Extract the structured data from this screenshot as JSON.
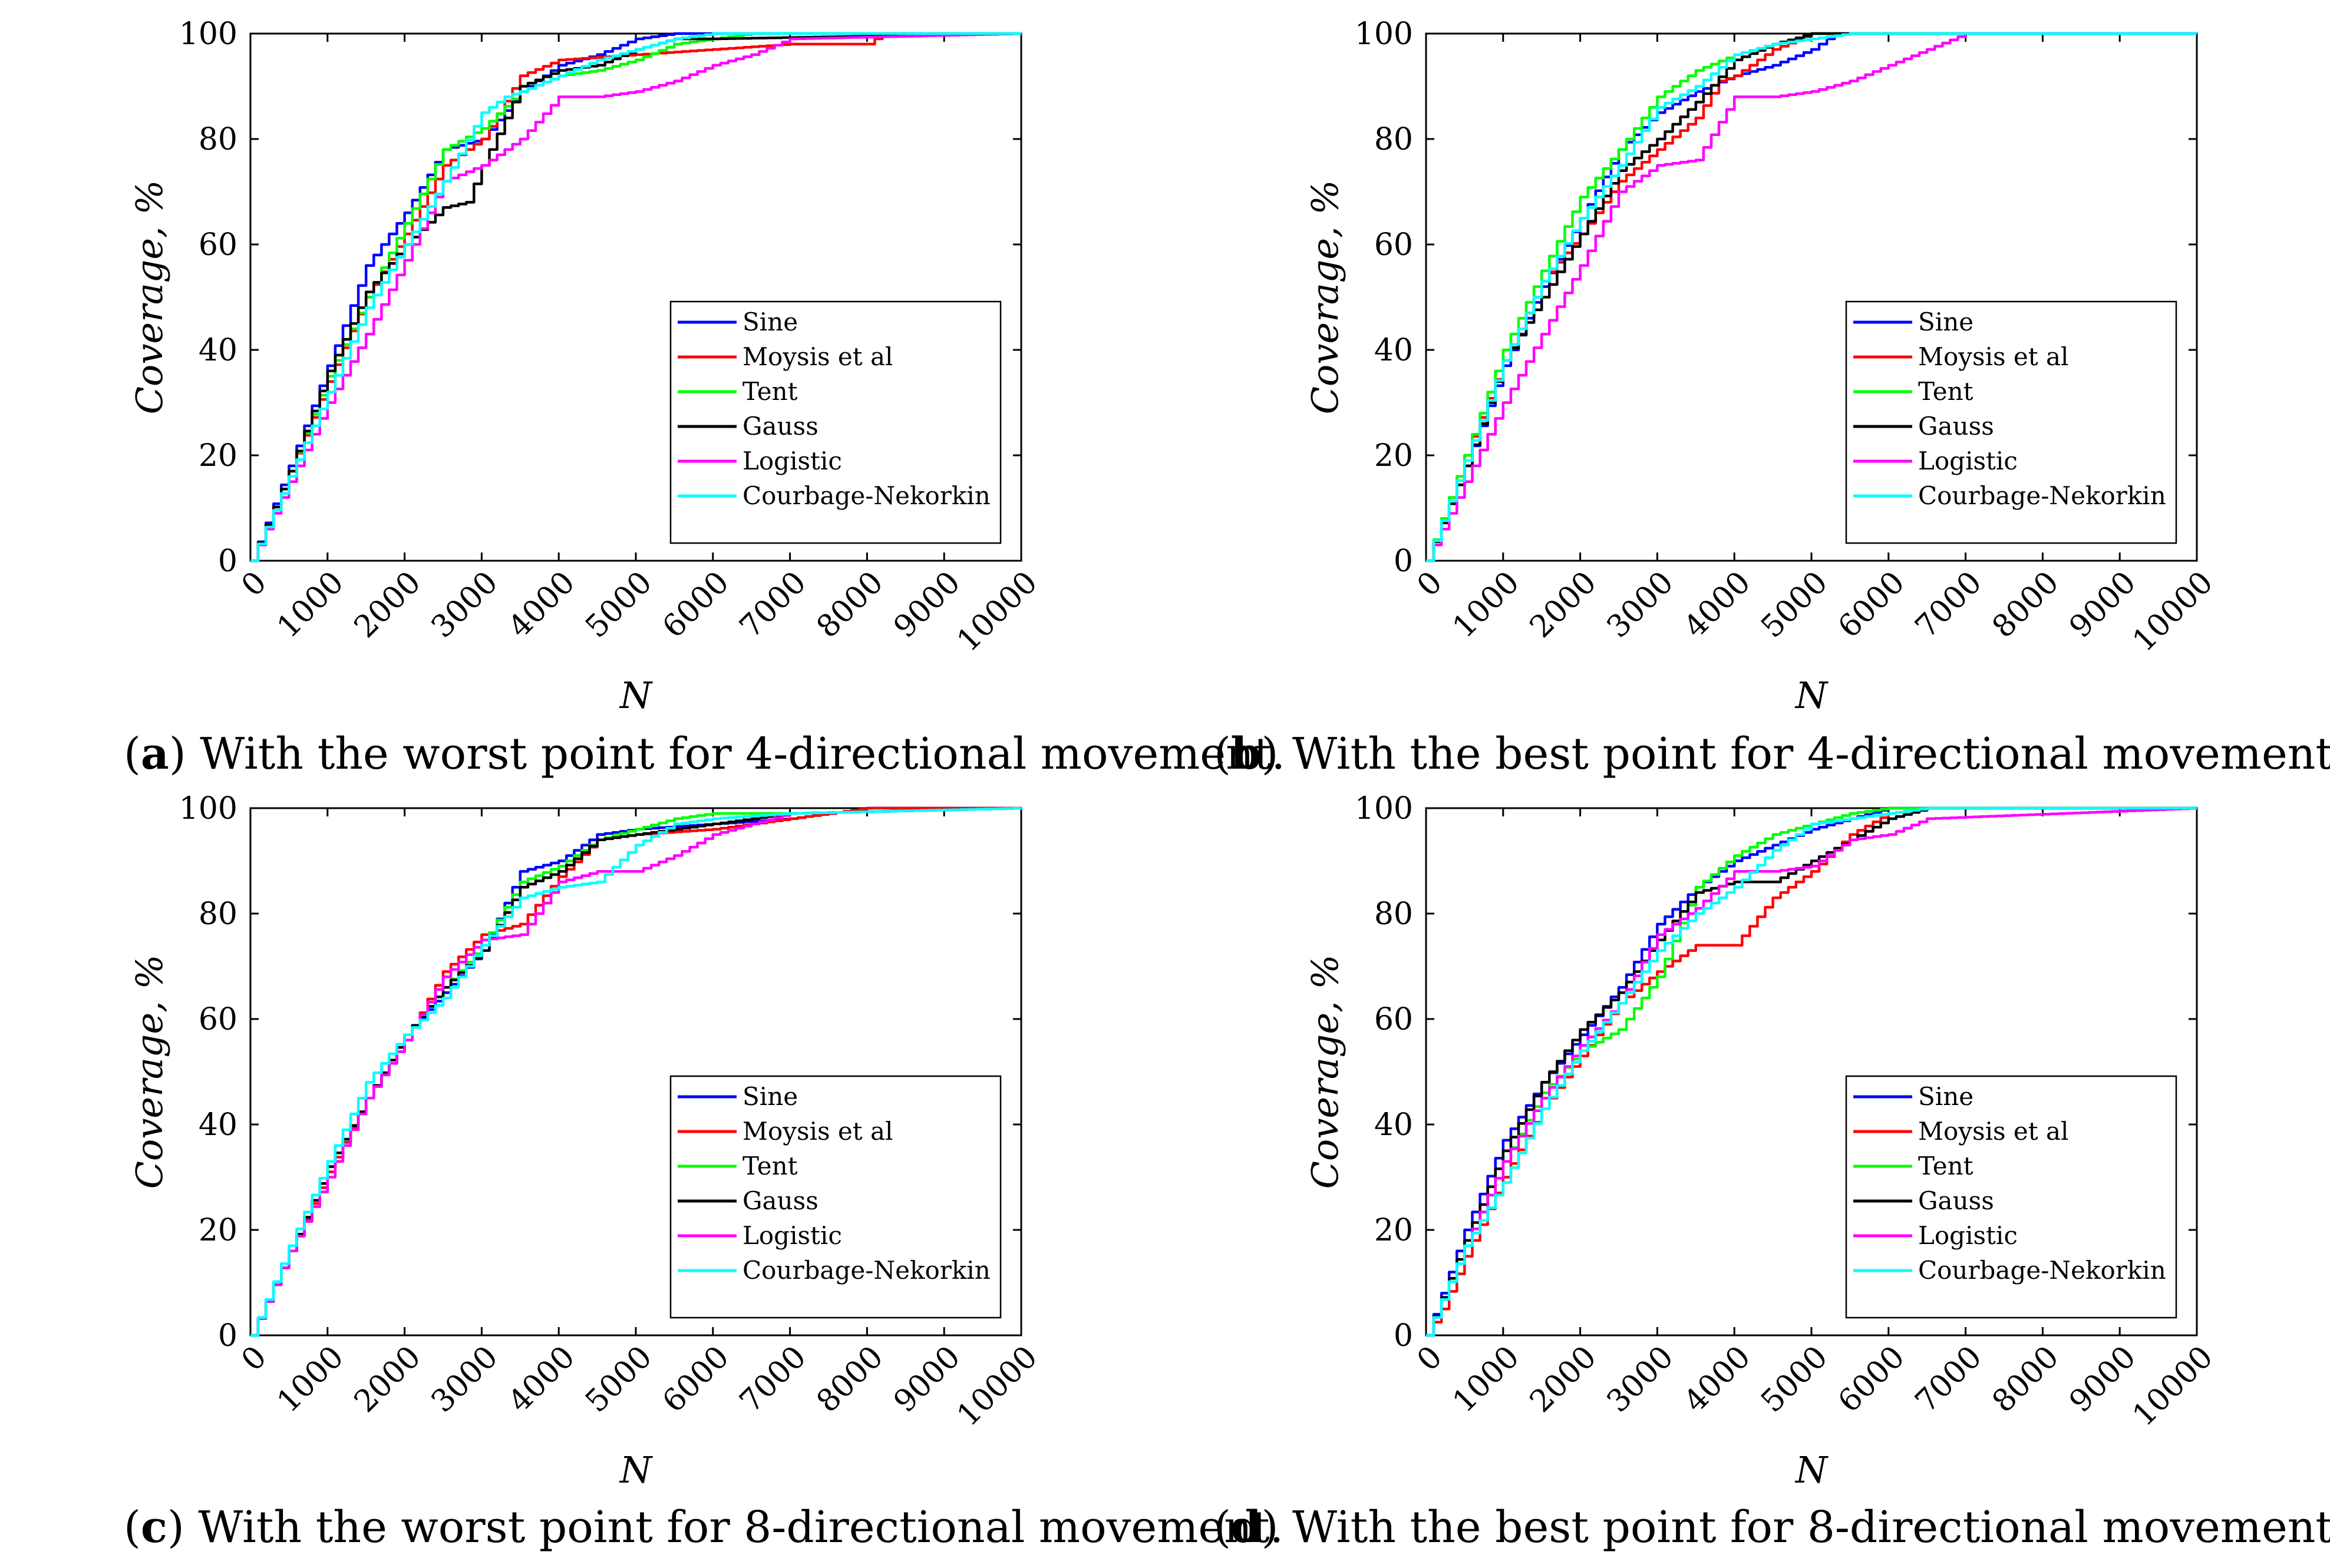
{
  "figure": {
    "series_meta": [
      {
        "name": "Sine",
        "color": "#0000ff"
      },
      {
        "name": "Moysis et al",
        "color": "#ff0000"
      },
      {
        "name": "Tent",
        "color": "#00ff00"
      },
      {
        "name": "Gauss",
        "color": "#000000"
      },
      {
        "name": "Logistic",
        "color": "#ff00ff"
      },
      {
        "name": "Courbage-Nekorkin",
        "color": "#00ffff"
      }
    ]
  },
  "chart_data": [
    {
      "type": "line",
      "panel": "a",
      "caption_letter": "a",
      "caption_text": "With the worst point for 4-directional movement.",
      "xlabel": "N",
      "ylabel": "Coverage, %",
      "xlim": [
        0,
        10000
      ],
      "ylim": [
        0,
        100
      ],
      "xticks": [
        "0",
        "1000",
        "2000",
        "3000",
        "4000",
        "5000",
        "6000",
        "7000",
        "8000",
        "9000",
        "10000"
      ],
      "yticks": [
        "0",
        "20",
        "40",
        "60",
        "80",
        "100"
      ],
      "legend": [
        "Sine",
        "Moysis et al",
        "Tent",
        "Gauss",
        "Logistic",
        "Courbage-Nekorkin"
      ],
      "legend_position": "bottom-right",
      "series": [
        {
          "name": "Sine",
          "x": [
            0,
            500,
            1000,
            1500,
            2000,
            2500,
            3000,
            3500,
            4000,
            4500,
            5000,
            5500,
            6000,
            10000
          ],
          "y": [
            0,
            18,
            37,
            56,
            66,
            78,
            80,
            89,
            94,
            96,
            99,
            100,
            100,
            100
          ]
        },
        {
          "name": "Moysis et al",
          "x": [
            0,
            500,
            1000,
            1500,
            2000,
            2500,
            3000,
            3500,
            4000,
            5000,
            6000,
            7000,
            8000,
            8200,
            10000
          ],
          "y": [
            0,
            17,
            34,
            50,
            62,
            75,
            80,
            92,
            95,
            96,
            97,
            98,
            98,
            100,
            100
          ]
        },
        {
          "name": "Tent",
          "x": [
            0,
            500,
            1000,
            1500,
            2000,
            2500,
            3000,
            3500,
            4000,
            4500,
            5000,
            5500,
            6500,
            10000
          ],
          "y": [
            0,
            17,
            35,
            50,
            64,
            78,
            82,
            89,
            92,
            93,
            95,
            98,
            100,
            100
          ]
        },
        {
          "name": "Gauss",
          "x": [
            0,
            500,
            1000,
            1500,
            2000,
            2500,
            2800,
            3000,
            3500,
            4000,
            4500,
            5000,
            5500,
            6000,
            10000
          ],
          "y": [
            0,
            17,
            36,
            51,
            60,
            67,
            68,
            75,
            90,
            93,
            94,
            97,
            99,
            99,
            100
          ]
        },
        {
          "name": "Logistic",
          "x": [
            0,
            500,
            1000,
            1500,
            2000,
            2500,
            3000,
            3500,
            4000,
            4500,
            5000,
            5500,
            6000,
            6500,
            7000,
            10000
          ],
          "y": [
            0,
            15,
            30,
            43,
            57,
            72,
            75,
            80,
            88,
            88,
            89,
            91,
            94,
            96,
            99,
            100
          ]
        },
        {
          "name": "Courbage-Nekorkin",
          "x": [
            0,
            500,
            1000,
            1500,
            2000,
            2500,
            3000,
            3300,
            3500,
            4000,
            4500,
            5000,
            5500,
            6000,
            10000
          ],
          "y": [
            0,
            16,
            32,
            48,
            60,
            72,
            85,
            88,
            89,
            92,
            95,
            97,
            99,
            100,
            100
          ]
        }
      ]
    },
    {
      "type": "line",
      "panel": "b",
      "caption_letter": "b",
      "caption_text": "With the best point for 4-directional movement.",
      "xlabel": "N",
      "ylabel": "Coverage, %",
      "xlim": [
        0,
        10000
      ],
      "ylim": [
        0,
        100
      ],
      "xticks": [
        "0",
        "1000",
        "2000",
        "3000",
        "4000",
        "5000",
        "6000",
        "7000",
        "8000",
        "9000",
        "10000"
      ],
      "yticks": [
        "0",
        "20",
        "40",
        "60",
        "80",
        "100"
      ],
      "legend": [
        "Sine",
        "Moysis et al",
        "Tent",
        "Gauss",
        "Logistic",
        "Courbage-Nekorkin"
      ],
      "legend_position": "bottom-right",
      "series": [
        {
          "name": "Sine",
          "x": [
            0,
            500,
            1000,
            1500,
            2000,
            2500,
            3000,
            3500,
            4000,
            4500,
            5000,
            5300,
            10000
          ],
          "y": [
            0,
            18,
            37,
            52,
            65,
            78,
            85,
            89,
            92,
            94,
            97,
            100,
            100
          ]
        },
        {
          "name": "Moysis et al",
          "x": [
            0,
            500,
            1000,
            1500,
            2000,
            2500,
            3000,
            3500,
            3800,
            4000,
            4500,
            5000,
            10000
          ],
          "y": [
            0,
            20,
            38,
            53,
            62,
            72,
            78,
            84,
            91,
            92,
            97,
            100,
            100
          ]
        },
        {
          "name": "Tent",
          "x": [
            0,
            500,
            1000,
            1500,
            2000,
            2500,
            3000,
            3500,
            4000,
            4500,
            5000,
            10000
          ],
          "y": [
            0,
            20,
            40,
            55,
            69,
            78,
            88,
            93,
            96,
            98,
            100,
            100
          ]
        },
        {
          "name": "Gauss",
          "x": [
            0,
            500,
            1000,
            1500,
            2000,
            2500,
            3000,
            3500,
            4000,
            4500,
            5000,
            10000
          ],
          "y": [
            0,
            18,
            38,
            50,
            62,
            74,
            80,
            87,
            95,
            98,
            100,
            100
          ]
        },
        {
          "name": "Logistic",
          "x": [
            0,
            500,
            1000,
            1500,
            2000,
            2500,
            3000,
            3500,
            4000,
            4500,
            5000,
            5500,
            6000,
            6500,
            7000,
            10000
          ],
          "y": [
            0,
            15,
            30,
            43,
            56,
            70,
            75,
            76,
            88,
            88,
            89,
            91,
            94,
            97,
            100,
            100
          ]
        },
        {
          "name": "Courbage-Nekorkin",
          "x": [
            0,
            500,
            1000,
            1500,
            2000,
            2500,
            3000,
            3500,
            4000,
            4500,
            5000,
            5500,
            10000
          ],
          "y": [
            0,
            19,
            38,
            53,
            65,
            75,
            86,
            90,
            96,
            98,
            99,
            100,
            100
          ]
        }
      ]
    },
    {
      "type": "line",
      "panel": "c",
      "caption_letter": "c",
      "caption_text": "With the worst point for 8-directional movement.",
      "xlabel": "N",
      "ylabel": "Coverage, %",
      "xlim": [
        0,
        10000
      ],
      "ylim": [
        0,
        100
      ],
      "xticks": [
        "0",
        "1000",
        "2000",
        "3000",
        "4000",
        "5000",
        "6000",
        "7000",
        "8000",
        "9000",
        "10000"
      ],
      "yticks": [
        "0",
        "20",
        "40",
        "60",
        "80",
        "100"
      ],
      "legend": [
        "Sine",
        "Moysis et al",
        "Tent",
        "Gauss",
        "Logistic",
        "Courbage-Nekorkin"
      ],
      "legend_position": "bottom-right",
      "series": [
        {
          "name": "Sine",
          "x": [
            0,
            500,
            1000,
            1500,
            2000,
            2500,
            3000,
            3500,
            4000,
            4500,
            5000,
            6000,
            7000,
            8000,
            10000
          ],
          "y": [
            0,
            16,
            32,
            45,
            57,
            65,
            73,
            88,
            90,
            95,
            96,
            97,
            98,
            100,
            100
          ]
        },
        {
          "name": "Moysis et al",
          "x": [
            0,
            500,
            1000,
            1500,
            2000,
            2500,
            3000,
            3500,
            4000,
            4500,
            5000,
            6000,
            7000,
            8000,
            10000
          ],
          "y": [
            0,
            16,
            31,
            45,
            56,
            69,
            76,
            78,
            87,
            94,
            95,
            96,
            98,
            100,
            100
          ]
        },
        {
          "name": "Tent",
          "x": [
            0,
            500,
            1000,
            1500,
            2000,
            2500,
            3000,
            3500,
            4000,
            4500,
            5000,
            5500,
            6000,
            7000,
            10000
          ],
          "y": [
            0,
            16,
            32,
            45,
            57,
            66,
            74,
            86,
            89,
            94,
            96,
            98,
            99,
            99,
            100
          ]
        },
        {
          "name": "Gauss",
          "x": [
            0,
            500,
            1000,
            1500,
            2000,
            2500,
            3000,
            3500,
            4000,
            4500,
            5000,
            6000,
            7000,
            10000
          ],
          "y": [
            0,
            16,
            32,
            45,
            57,
            66,
            73,
            85,
            88,
            94,
            95,
            97,
            99,
            100
          ]
        },
        {
          "name": "Logistic",
          "x": [
            0,
            500,
            1000,
            1500,
            2000,
            2500,
            3000,
            3500,
            4000,
            4500,
            5000,
            5500,
            6000,
            6500,
            7000,
            10000
          ],
          "y": [
            0,
            16,
            30,
            45,
            56,
            68,
            75,
            76,
            86,
            88,
            88,
            91,
            95,
            97,
            99,
            100
          ]
        },
        {
          "name": "Courbage-Nekorkin",
          "x": [
            0,
            500,
            1000,
            1500,
            2000,
            2500,
            3000,
            3500,
            4000,
            4500,
            5000,
            5500,
            6000,
            7000,
            10000
          ],
          "y": [
            0,
            17,
            33,
            48,
            57,
            64,
            74,
            83,
            85,
            86,
            93,
            97,
            98,
            99,
            100
          ]
        }
      ]
    },
    {
      "type": "line",
      "panel": "d",
      "caption_letter": "d",
      "caption_text": "With the best point for 8-directional movement.",
      "xlabel": "N",
      "ylabel": "Coverage, %",
      "xlim": [
        0,
        10000
      ],
      "ylim": [
        0,
        100
      ],
      "xticks": [
        "0",
        "1000",
        "2000",
        "3000",
        "4000",
        "5000",
        "6000",
        "7000",
        "8000",
        "9000",
        "10000"
      ],
      "yticks": [
        "0",
        "20",
        "40",
        "60",
        "80",
        "100"
      ],
      "legend": [
        "Sine",
        "Moysis et al",
        "Tent",
        "Gauss",
        "Logistic",
        "Courbage-Nekorkin"
      ],
      "legend_position": "bottom-right",
      "series": [
        {
          "name": "Sine",
          "x": [
            0,
            500,
            1000,
            1500,
            2000,
            2500,
            3000,
            3500,
            4000,
            4500,
            5000,
            5500,
            6000,
            10000
          ],
          "y": [
            0,
            20,
            37,
            48,
            57,
            66,
            78,
            85,
            90,
            93,
            96,
            98,
            100,
            100
          ]
        },
        {
          "name": "Moysis et al",
          "x": [
            0,
            200,
            500,
            1000,
            1500,
            2000,
            2500,
            3000,
            3500,
            4000,
            4500,
            5000,
            5500,
            6000,
            6500,
            10000
          ],
          "y": [
            0,
            5,
            15,
            30,
            43,
            53,
            63,
            69,
            74,
            74,
            83,
            88,
            95,
            99,
            100,
            100
          ]
        },
        {
          "name": "Tent",
          "x": [
            0,
            500,
            1000,
            1500,
            2000,
            2500,
            3000,
            3500,
            4000,
            4500,
            5000,
            5500,
            6000,
            10000
          ],
          "y": [
            0,
            17,
            33,
            46,
            54,
            58,
            68,
            85,
            91,
            95,
            97,
            99,
            100,
            100
          ]
        },
        {
          "name": "Gauss",
          "x": [
            0,
            500,
            1000,
            1500,
            2000,
            2500,
            3000,
            3500,
            4000,
            4500,
            5000,
            5500,
            6000,
            6500,
            10000
          ],
          "y": [
            0,
            18,
            35,
            48,
            58,
            65,
            75,
            84,
            86,
            86,
            90,
            94,
            98,
            100,
            100
          ]
        },
        {
          "name": "Logistic",
          "x": [
            0,
            500,
            1000,
            1500,
            2000,
            2500,
            3000,
            3500,
            4000,
            4500,
            5000,
            5500,
            6000,
            6500,
            10000
          ],
          "y": [
            0,
            17,
            33,
            45,
            55,
            63,
            76,
            81,
            88,
            88,
            89,
            94,
            95,
            98,
            100
          ]
        },
        {
          "name": "Courbage-Nekorkin",
          "x": [
            0,
            500,
            1000,
            1500,
            2000,
            2500,
            3000,
            3500,
            4000,
            4500,
            5000,
            5500,
            6000,
            6500,
            10000
          ],
          "y": [
            0,
            17,
            29,
            43,
            54,
            63,
            73,
            80,
            85,
            92,
            97,
            98,
            99,
            100,
            100
          ]
        }
      ]
    }
  ]
}
